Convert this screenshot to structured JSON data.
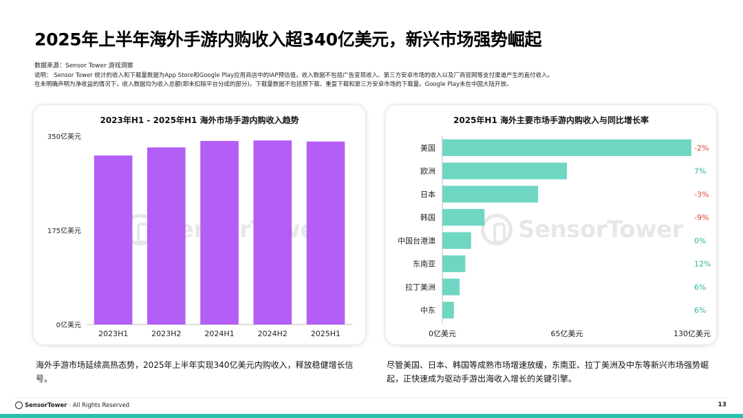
{
  "title": "2025年上半年海外手游内购收入超340亿美元，新兴市场强势崛起",
  "source": "数据来源：Sensor Tower 游戏洞察",
  "note_line1": "说明： Sensor Tower 统计的收入和下载量数据为App Store和Google Play应用商店中的IAP预估值，收入数据不包括广告变现收入、第三方安卓市场的收入以及厂商官网等支付渠道产生的直付收入。",
  "note_line2": "在未明确声明为净收益的情况下，收入数据均为收入总额(即未扣除平台分成的部分)。下载量数据不包括预下载、重复下载和第三方安卓市场的下载量。Google Play未在中国大陆开放。",
  "watermark": "SensorTower",
  "caption_left": "海外手游市场延续高热态势，2025年上半年实现340亿美元内购收入，释放稳健增长信号。",
  "caption_right": "尽管美国、日本、韩国等成熟市场增速放缓，东南亚、拉丁美洲及中东等新兴市场强势崛起，正快速成为驱动手游出海收入增长的关键引擎。",
  "footer": {
    "brand": "SensorTower",
    "rights": "· All Rights Reserved",
    "page": "13"
  },
  "chart_data": [
    {
      "type": "bar",
      "title": "2023年H1 - 2025年H1 海外市场手游内购收入趋势",
      "categories": [
        "2023H1",
        "2023H2",
        "2024H1",
        "2024H2",
        "2025H1"
      ],
      "values": [
        314,
        329,
        341,
        342,
        340
      ],
      "ylim": [
        0,
        350
      ],
      "yticks": [
        0,
        175,
        350
      ],
      "ytick_labels": [
        "0亿美元",
        "175亿美元",
        "350亿美元"
      ],
      "color": "#b35ef5"
    },
    {
      "type": "bar",
      "orientation": "horizontal",
      "title": "2025年H1 海外主要市场手游内购收入与同比增长率",
      "categories": [
        "美国",
        "欧洲",
        "日本",
        "韩国",
        "中国台港澳",
        "东南亚",
        "拉丁美洲",
        "中东"
      ],
      "values": [
        130,
        65,
        50,
        22,
        15,
        12,
        9,
        6
      ],
      "growth_labels": [
        "-2%",
        "7%",
        "-3%",
        "-9%",
        "0%",
        "12%",
        "6%",
        "6%"
      ],
      "xlim": [
        0,
        130
      ],
      "xticks": [
        0,
        65,
        130
      ],
      "xtick_labels": [
        "0亿美元",
        "65亿美元",
        "130亿美元"
      ],
      "color": "#6fd6c4",
      "positive_color": "#2cb5a0",
      "negative_color": "#e0473b"
    }
  ]
}
